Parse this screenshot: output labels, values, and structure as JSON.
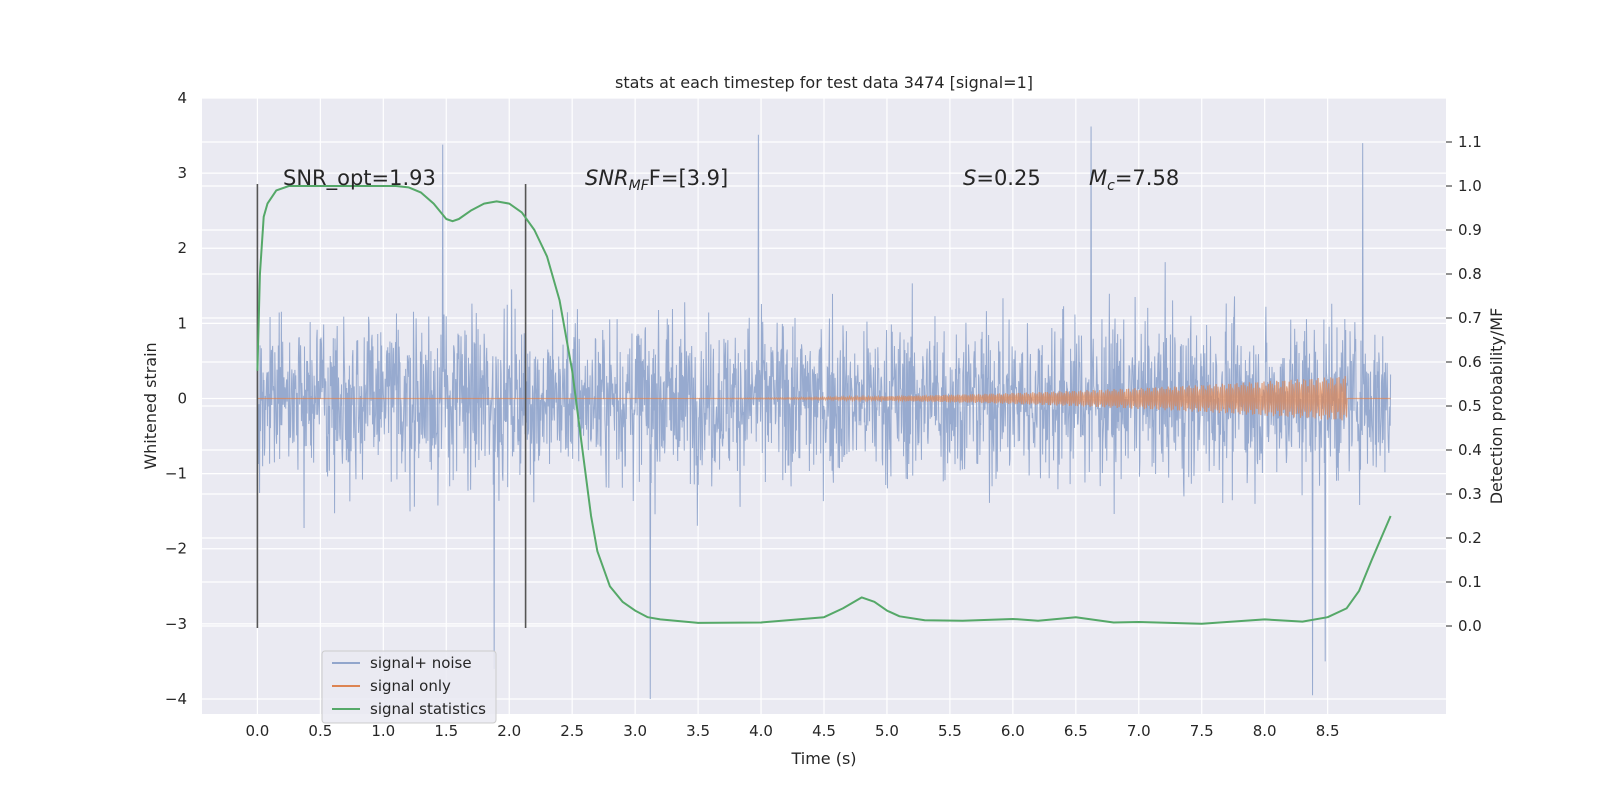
{
  "chart_data": {
    "type": "line",
    "title": "stats at each timestep for test data 3474 [signal=1]",
    "xlabel": "Time (s)",
    "ylabel_left": "Whitened strain",
    "ylabel_right": "Detection probability/MF",
    "xlim": [
      -0.44,
      9.44
    ],
    "ylim_left": [
      -4.2,
      4.0
    ],
    "ylim_right": [
      -0.2,
      1.2
    ],
    "x_ticks": [
      "0.0",
      "0.5",
      "1.0",
      "1.5",
      "2.0",
      "2.5",
      "3.0",
      "3.5",
      "4.0",
      "4.5",
      "5.0",
      "5.5",
      "6.0",
      "6.5",
      "7.0",
      "7.5",
      "8.0",
      "8.5"
    ],
    "y_ticks_left": [
      "−4",
      "−3",
      "−2",
      "−1",
      "0",
      "1",
      "2",
      "3",
      "4"
    ],
    "y_ticks_right": [
      "0.0",
      "0.1",
      "0.2",
      "0.3",
      "0.4",
      "0.5",
      "0.6",
      "0.7",
      "0.8",
      "0.9",
      "1.0",
      "1.1"
    ],
    "grid": true,
    "annotations": {
      "snr_opt": "SNR_opt=1.93",
      "snr_mf_base": "SNR",
      "snr_mf_sub": "MF",
      "snr_mf_rest": "F=[3.9]",
      "s_base": "S",
      "s_rest": "=0.25",
      "mc_base": "M",
      "mc_sub": "c",
      "mc_rest": "=7.58"
    },
    "vertical_markers_x": [
      0.0,
      2.13
    ],
    "legend": {
      "placement": "lower-left",
      "entries": [
        "signal+ noise",
        "signal only",
        "signal statistics"
      ]
    },
    "series": [
      {
        "name": "signal+ noise",
        "color": "#92a6cc",
        "x_range": [
          0.0,
          9.0
        ],
        "envelope_typical": [
          -1.4,
          1.9
        ],
        "notable_spikes": [
          {
            "x": 1.47,
            "y": 3.38
          },
          {
            "x": 1.88,
            "y": -3.6
          },
          {
            "x": 3.12,
            "y": -4.0
          },
          {
            "x": 3.98,
            "y": 3.51
          },
          {
            "x": 6.62,
            "y": 3.62
          },
          {
            "x": 8.78,
            "y": 3.4
          },
          {
            "x": 8.38,
            "y": -3.95
          },
          {
            "x": 8.48,
            "y": -3.5
          }
        ]
      },
      {
        "name": "signal only",
        "color": "#dd8452",
        "chirp_start": 3.0,
        "chirp_peak_t": 8.65,
        "chirp_peak_amp": 0.3
      },
      {
        "name": "signal statistics",
        "color": "#55a868",
        "axis": "right",
        "x": [
          0.0,
          0.02,
          0.05,
          0.08,
          0.15,
          0.25,
          0.4,
          0.6,
          0.8,
          1.0,
          1.1,
          1.2,
          1.3,
          1.4,
          1.5,
          1.55,
          1.6,
          1.7,
          1.8,
          1.9,
          2.0,
          2.1,
          2.2,
          2.3,
          2.4,
          2.5,
          2.6,
          2.65,
          2.7,
          2.8,
          2.9,
          3.0,
          3.1,
          3.2,
          3.5,
          4.0,
          4.5,
          4.65,
          4.8,
          4.9,
          5.0,
          5.1,
          5.3,
          5.6,
          6.0,
          6.2,
          6.5,
          6.8,
          7.0,
          7.5,
          8.0,
          8.3,
          8.5,
          8.65,
          8.75,
          8.85,
          9.0
        ],
        "y": [
          0.58,
          0.8,
          0.93,
          0.96,
          0.99,
          1.0,
          1.0,
          1.0,
          1.0,
          1.0,
          1.0,
          0.997,
          0.985,
          0.96,
          0.925,
          0.92,
          0.925,
          0.945,
          0.96,
          0.965,
          0.96,
          0.94,
          0.9,
          0.84,
          0.74,
          0.58,
          0.36,
          0.25,
          0.17,
          0.09,
          0.055,
          0.035,
          0.02,
          0.015,
          0.007,
          0.008,
          0.02,
          0.04,
          0.065,
          0.055,
          0.035,
          0.022,
          0.013,
          0.012,
          0.016,
          0.012,
          0.02,
          0.008,
          0.009,
          0.005,
          0.015,
          0.01,
          0.02,
          0.04,
          0.08,
          0.15,
          0.25
        ]
      }
    ]
  }
}
